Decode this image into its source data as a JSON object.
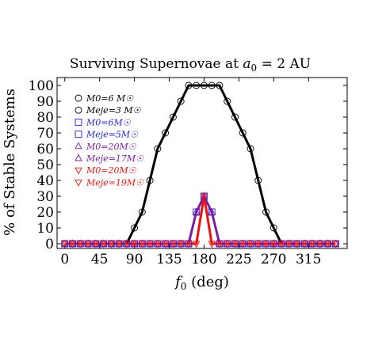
{
  "chart_data": {
    "type": "line",
    "title": "Surviving Supernovae at a0 = 2 AU",
    "title_parts": {
      "prefix": "Surviving Supernovae at ",
      "var": "a",
      "sub": "0",
      "suffix": " = 2 AU"
    },
    "xlabel": "f0 (deg)",
    "xlabel_parts": {
      "var": "f",
      "sub": "0",
      "suffix": " (deg)"
    },
    "ylabel": "% of Stable Systems",
    "xlim": [
      -10,
      365
    ],
    "ylim": [
      -3,
      105
    ],
    "xticks": [
      0,
      45,
      90,
      135,
      180,
      225,
      270,
      315
    ],
    "yticks": [
      0,
      10,
      20,
      30,
      40,
      50,
      60,
      70,
      80,
      90,
      100
    ],
    "grid": false,
    "legend_position": "upper-left",
    "x": [
      0,
      10,
      20,
      30,
      40,
      50,
      60,
      70,
      80,
      90,
      100,
      110,
      120,
      130,
      140,
      150,
      160,
      170,
      180,
      190,
      200,
      210,
      220,
      230,
      240,
      250,
      260,
      270,
      280,
      290,
      300,
      310,
      320,
      330,
      340,
      350
    ],
    "series": [
      {
        "legend": [
          "M0=6 M☉",
          "Meje=3 M☉"
        ],
        "marker": "circle",
        "color": "#000000",
        "values": [
          0,
          0,
          0,
          0,
          0,
          0,
          0,
          0,
          0,
          10,
          20,
          40,
          60,
          70,
          80,
          90,
          100,
          100,
          100,
          100,
          100,
          90,
          80,
          70,
          60,
          40,
          20,
          10,
          0,
          0,
          0,
          0,
          0,
          0,
          0,
          0
        ]
      },
      {
        "legend": [
          "M0=6M☉",
          "Meje=5M☉"
        ],
        "marker": "square",
        "color": "#2222dd",
        "values": [
          0,
          0,
          0,
          0,
          0,
          0,
          0,
          0,
          0,
          0,
          0,
          0,
          0,
          0,
          0,
          0,
          0,
          20,
          30,
          20,
          0,
          0,
          0,
          0,
          0,
          0,
          0,
          0,
          0,
          0,
          0,
          0,
          0,
          0,
          0,
          0
        ]
      },
      {
        "legend": [
          "M0=20M☉",
          "Meje=17M☉"
        ],
        "marker": "triangle-up",
        "color": "#7a1fa2",
        "values": [
          0,
          0,
          0,
          0,
          0,
          0,
          0,
          0,
          0,
          0,
          0,
          0,
          0,
          0,
          0,
          0,
          0,
          20,
          30,
          20,
          0,
          0,
          0,
          0,
          0,
          0,
          0,
          0,
          0,
          0,
          0,
          0,
          0,
          0,
          0,
          0
        ]
      },
      {
        "legend": [
          "M0=20M☉",
          "Meje=19M☉"
        ],
        "marker": "triangle-down",
        "color": "#ee1111",
        "values": [
          0,
          0,
          0,
          0,
          0,
          0,
          0,
          0,
          0,
          0,
          0,
          0,
          0,
          0,
          0,
          0,
          0,
          0,
          30,
          0,
          0,
          0,
          0,
          0,
          0,
          0,
          0,
          0,
          0,
          0,
          0,
          0,
          0,
          0,
          0,
          0
        ]
      }
    ]
  }
}
